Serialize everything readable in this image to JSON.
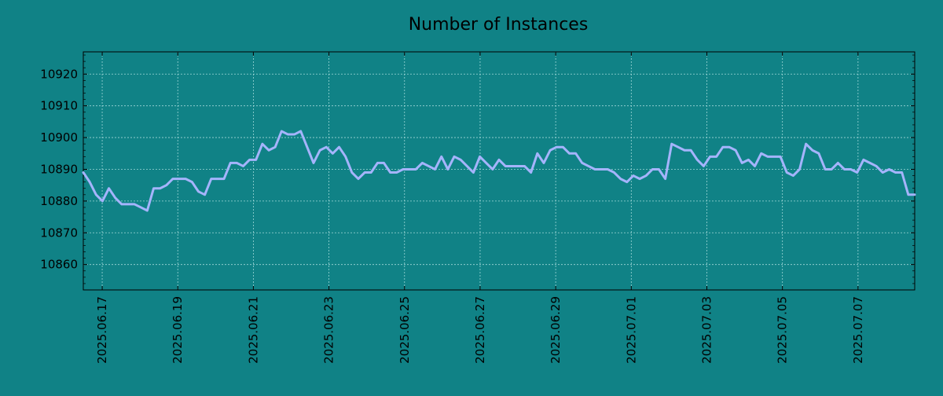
{
  "chart_data": {
    "type": "line",
    "title": "Number of Instances",
    "xlabel": "",
    "ylabel": "",
    "x_start": "2025-06-16T12:00",
    "x_end": "2025-07-08T12:00",
    "xlim": [
      "2025-06-16T12:00",
      "2025-07-08T12:00"
    ],
    "ylim": [
      10852,
      10927
    ],
    "x_ticks": [
      "2025.06.17",
      "2025.06.19",
      "2025.06.21",
      "2025.06.23",
      "2025.06.25",
      "2025.06.27",
      "2025.06.29",
      "2025.07.01",
      "2025.07.03",
      "2025.07.05",
      "2025.07.07"
    ],
    "x_tick_dates": [
      "2025-06-17",
      "2025-06-19",
      "2025-06-21",
      "2025-06-23",
      "2025-06-25",
      "2025-06-27",
      "2025-06-29",
      "2025-07-01",
      "2025-07-03",
      "2025-07-05",
      "2025-07-07"
    ],
    "y_ticks": [
      10860,
      10870,
      10880,
      10890,
      10900,
      10910,
      10920
    ],
    "grid": true,
    "colors": {
      "background": "#108286",
      "line": "#a5b4fc",
      "grid": "#9fd8d8",
      "axis": "#000000"
    },
    "series": [
      {
        "values": [
          10889,
          10886,
          10882,
          10880,
          10884,
          10881,
          10879,
          10879,
          10879,
          10878,
          10877,
          10884,
          10884,
          10885,
          10887,
          10887,
          10887,
          10886,
          10883,
          10882,
          10887,
          10887,
          10887,
          10892,
          10892,
          10891,
          10893,
          10893,
          10898,
          10896,
          10897,
          10902,
          10901,
          10901,
          10902,
          10897,
          10892,
          10896,
          10897,
          10895,
          10897,
          10894,
          10889,
          10887,
          10889,
          10889,
          10892,
          10892,
          10889,
          10889,
          10890,
          10890,
          10890,
          10892,
          10891,
          10890,
          10894,
          10890,
          10894,
          10893,
          10891,
          10889,
          10894,
          10892,
          10890,
          10893,
          10891,
          10891,
          10891,
          10891,
          10889,
          10895,
          10892,
          10896,
          10897,
          10897,
          10895,
          10895,
          10892,
          10891,
          10890,
          10890,
          10890,
          10889,
          10887,
          10886,
          10888,
          10887,
          10888,
          10890,
          10890,
          10887,
          10898,
          10897,
          10896,
          10896,
          10893,
          10891,
          10894,
          10894,
          10897,
          10897,
          10896,
          10892,
          10893,
          10891,
          10895,
          10894,
          10894,
          10894,
          10889,
          10888,
          10890,
          10898,
          10896,
          10895,
          10890,
          10890,
          10892,
          10890,
          10890,
          10889,
          10893,
          10892,
          10891,
          10889,
          10890,
          10889,
          10889,
          10882,
          10882
        ]
      }
    ]
  }
}
